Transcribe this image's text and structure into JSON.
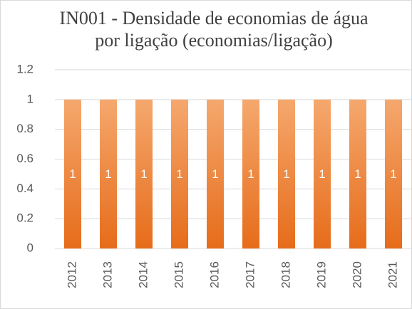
{
  "chart_data": {
    "type": "bar",
    "title": [
      "IN001 - Densidade de economias de água",
      "por ligação (economias/ligação)"
    ],
    "categories": [
      "2012",
      "2013",
      "2014",
      "2015",
      "2016",
      "2017",
      "2018",
      "2019",
      "2020",
      "2021"
    ],
    "values": [
      1,
      1,
      1,
      1,
      1,
      1,
      1,
      1,
      1,
      1
    ],
    "color": [
      "#f5a86e",
      "#e66c1a"
    ],
    "ylim": [
      0,
      1.2
    ],
    "yticks": [
      0,
      0.2,
      0.4,
      0.6,
      0.8,
      1,
      1.2
    ],
    "grid": true
  }
}
